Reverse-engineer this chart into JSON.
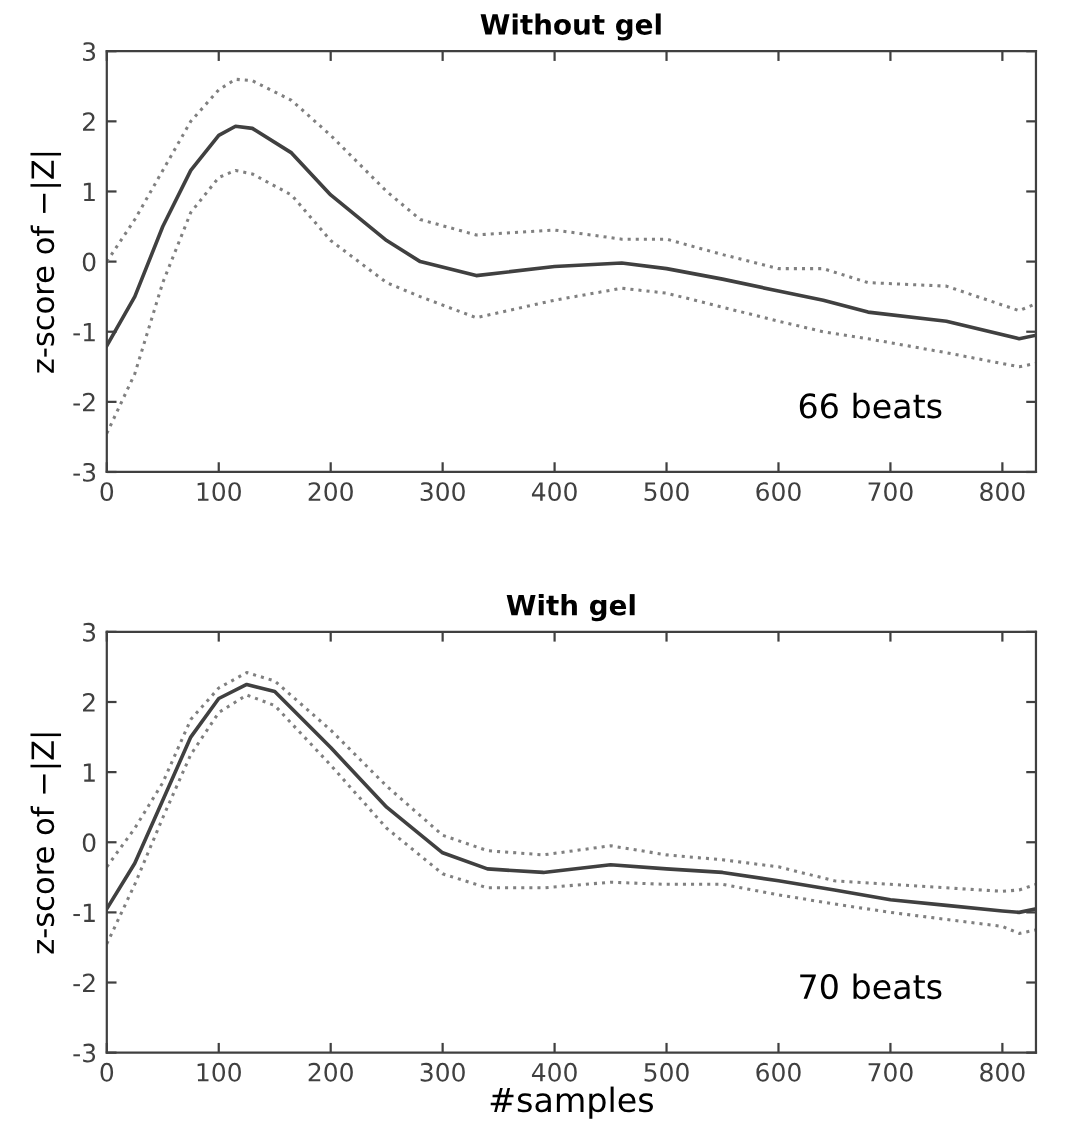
{
  "chart_data": [
    {
      "type": "line",
      "title": "Without gel",
      "ylabel": "z-score of −|Z|",
      "annotations": [
        "66 beats"
      ],
      "xlim": [
        0,
        830
      ],
      "ylim": [
        -3,
        3
      ],
      "xticks": [
        0,
        100,
        200,
        300,
        400,
        500,
        600,
        700,
        800
      ],
      "yticks": [
        -3,
        -2,
        -1,
        0,
        1,
        2,
        3
      ],
      "grid": false,
      "legend": false,
      "x": [
        0,
        25,
        50,
        75,
        100,
        115,
        130,
        165,
        200,
        250,
        280,
        330,
        400,
        460,
        500,
        550,
        600,
        640,
        680,
        750,
        815,
        830
      ],
      "series": [
        {
          "color": "#404040",
          "line_style": "solid",
          "values": [
            -1.2,
            -0.5,
            0.5,
            1.3,
            1.8,
            1.93,
            1.9,
            1.55,
            0.95,
            0.3,
            0.0,
            -0.2,
            -0.07,
            -0.02,
            -0.1,
            -0.25,
            -0.42,
            -0.55,
            -0.72,
            -0.85,
            -1.1,
            -1.05
          ]
        },
        {
          "color": "#808080",
          "line_style": "dotted",
          "values": [
            -2.45,
            -1.6,
            -0.3,
            0.7,
            1.2,
            1.3,
            1.25,
            0.95,
            0.3,
            -0.3,
            -0.5,
            -0.8,
            -0.55,
            -0.38,
            -0.45,
            -0.65,
            -0.85,
            -1.0,
            -1.1,
            -1.3,
            -1.5,
            -1.45
          ]
        },
        {
          "color": "#808080",
          "line_style": "dotted",
          "values": [
            0.0,
            0.6,
            1.3,
            2.0,
            2.45,
            2.6,
            2.58,
            2.3,
            1.8,
            1.0,
            0.6,
            0.38,
            0.45,
            0.32,
            0.32,
            0.1,
            -0.1,
            -0.1,
            -0.3,
            -0.35,
            -0.7,
            -0.6
          ]
        }
      ]
    },
    {
      "type": "line",
      "title": "With gel",
      "xlabel": "#samples",
      "ylabel": "z-score of −|Z|",
      "annotations": [
        "70 beats"
      ],
      "xlim": [
        0,
        830
      ],
      "ylim": [
        -3,
        3
      ],
      "xticks": [
        0,
        100,
        200,
        300,
        400,
        500,
        600,
        700,
        800
      ],
      "yticks": [
        -3,
        -2,
        -1,
        0,
        1,
        2,
        3
      ],
      "grid": false,
      "legend": false,
      "x": [
        0,
        25,
        50,
        75,
        100,
        125,
        150,
        200,
        250,
        300,
        340,
        390,
        450,
        500,
        550,
        600,
        650,
        700,
        750,
        800,
        815,
        830
      ],
      "series": [
        {
          "color": "#404040",
          "line_style": "solid",
          "values": [
            -0.95,
            -0.3,
            0.6,
            1.5,
            2.05,
            2.25,
            2.15,
            1.35,
            0.5,
            -0.15,
            -0.38,
            -0.43,
            -0.32,
            -0.38,
            -0.43,
            -0.55,
            -0.68,
            -0.82,
            -0.9,
            -0.98,
            -1.0,
            -0.95
          ]
        },
        {
          "color": "#808080",
          "line_style": "dotted",
          "values": [
            -1.45,
            -0.6,
            0.35,
            1.25,
            1.85,
            2.1,
            1.95,
            1.1,
            0.2,
            -0.45,
            -0.65,
            -0.65,
            -0.57,
            -0.6,
            -0.6,
            -0.75,
            -0.88,
            -1.0,
            -1.1,
            -1.2,
            -1.3,
            -1.25
          ]
        },
        {
          "color": "#808080",
          "line_style": "dotted",
          "values": [
            -0.35,
            0.2,
            0.85,
            1.75,
            2.2,
            2.42,
            2.3,
            1.6,
            0.8,
            0.1,
            -0.12,
            -0.18,
            -0.05,
            -0.18,
            -0.25,
            -0.35,
            -0.55,
            -0.6,
            -0.65,
            -0.7,
            -0.68,
            -0.6
          ]
        }
      ]
    }
  ]
}
